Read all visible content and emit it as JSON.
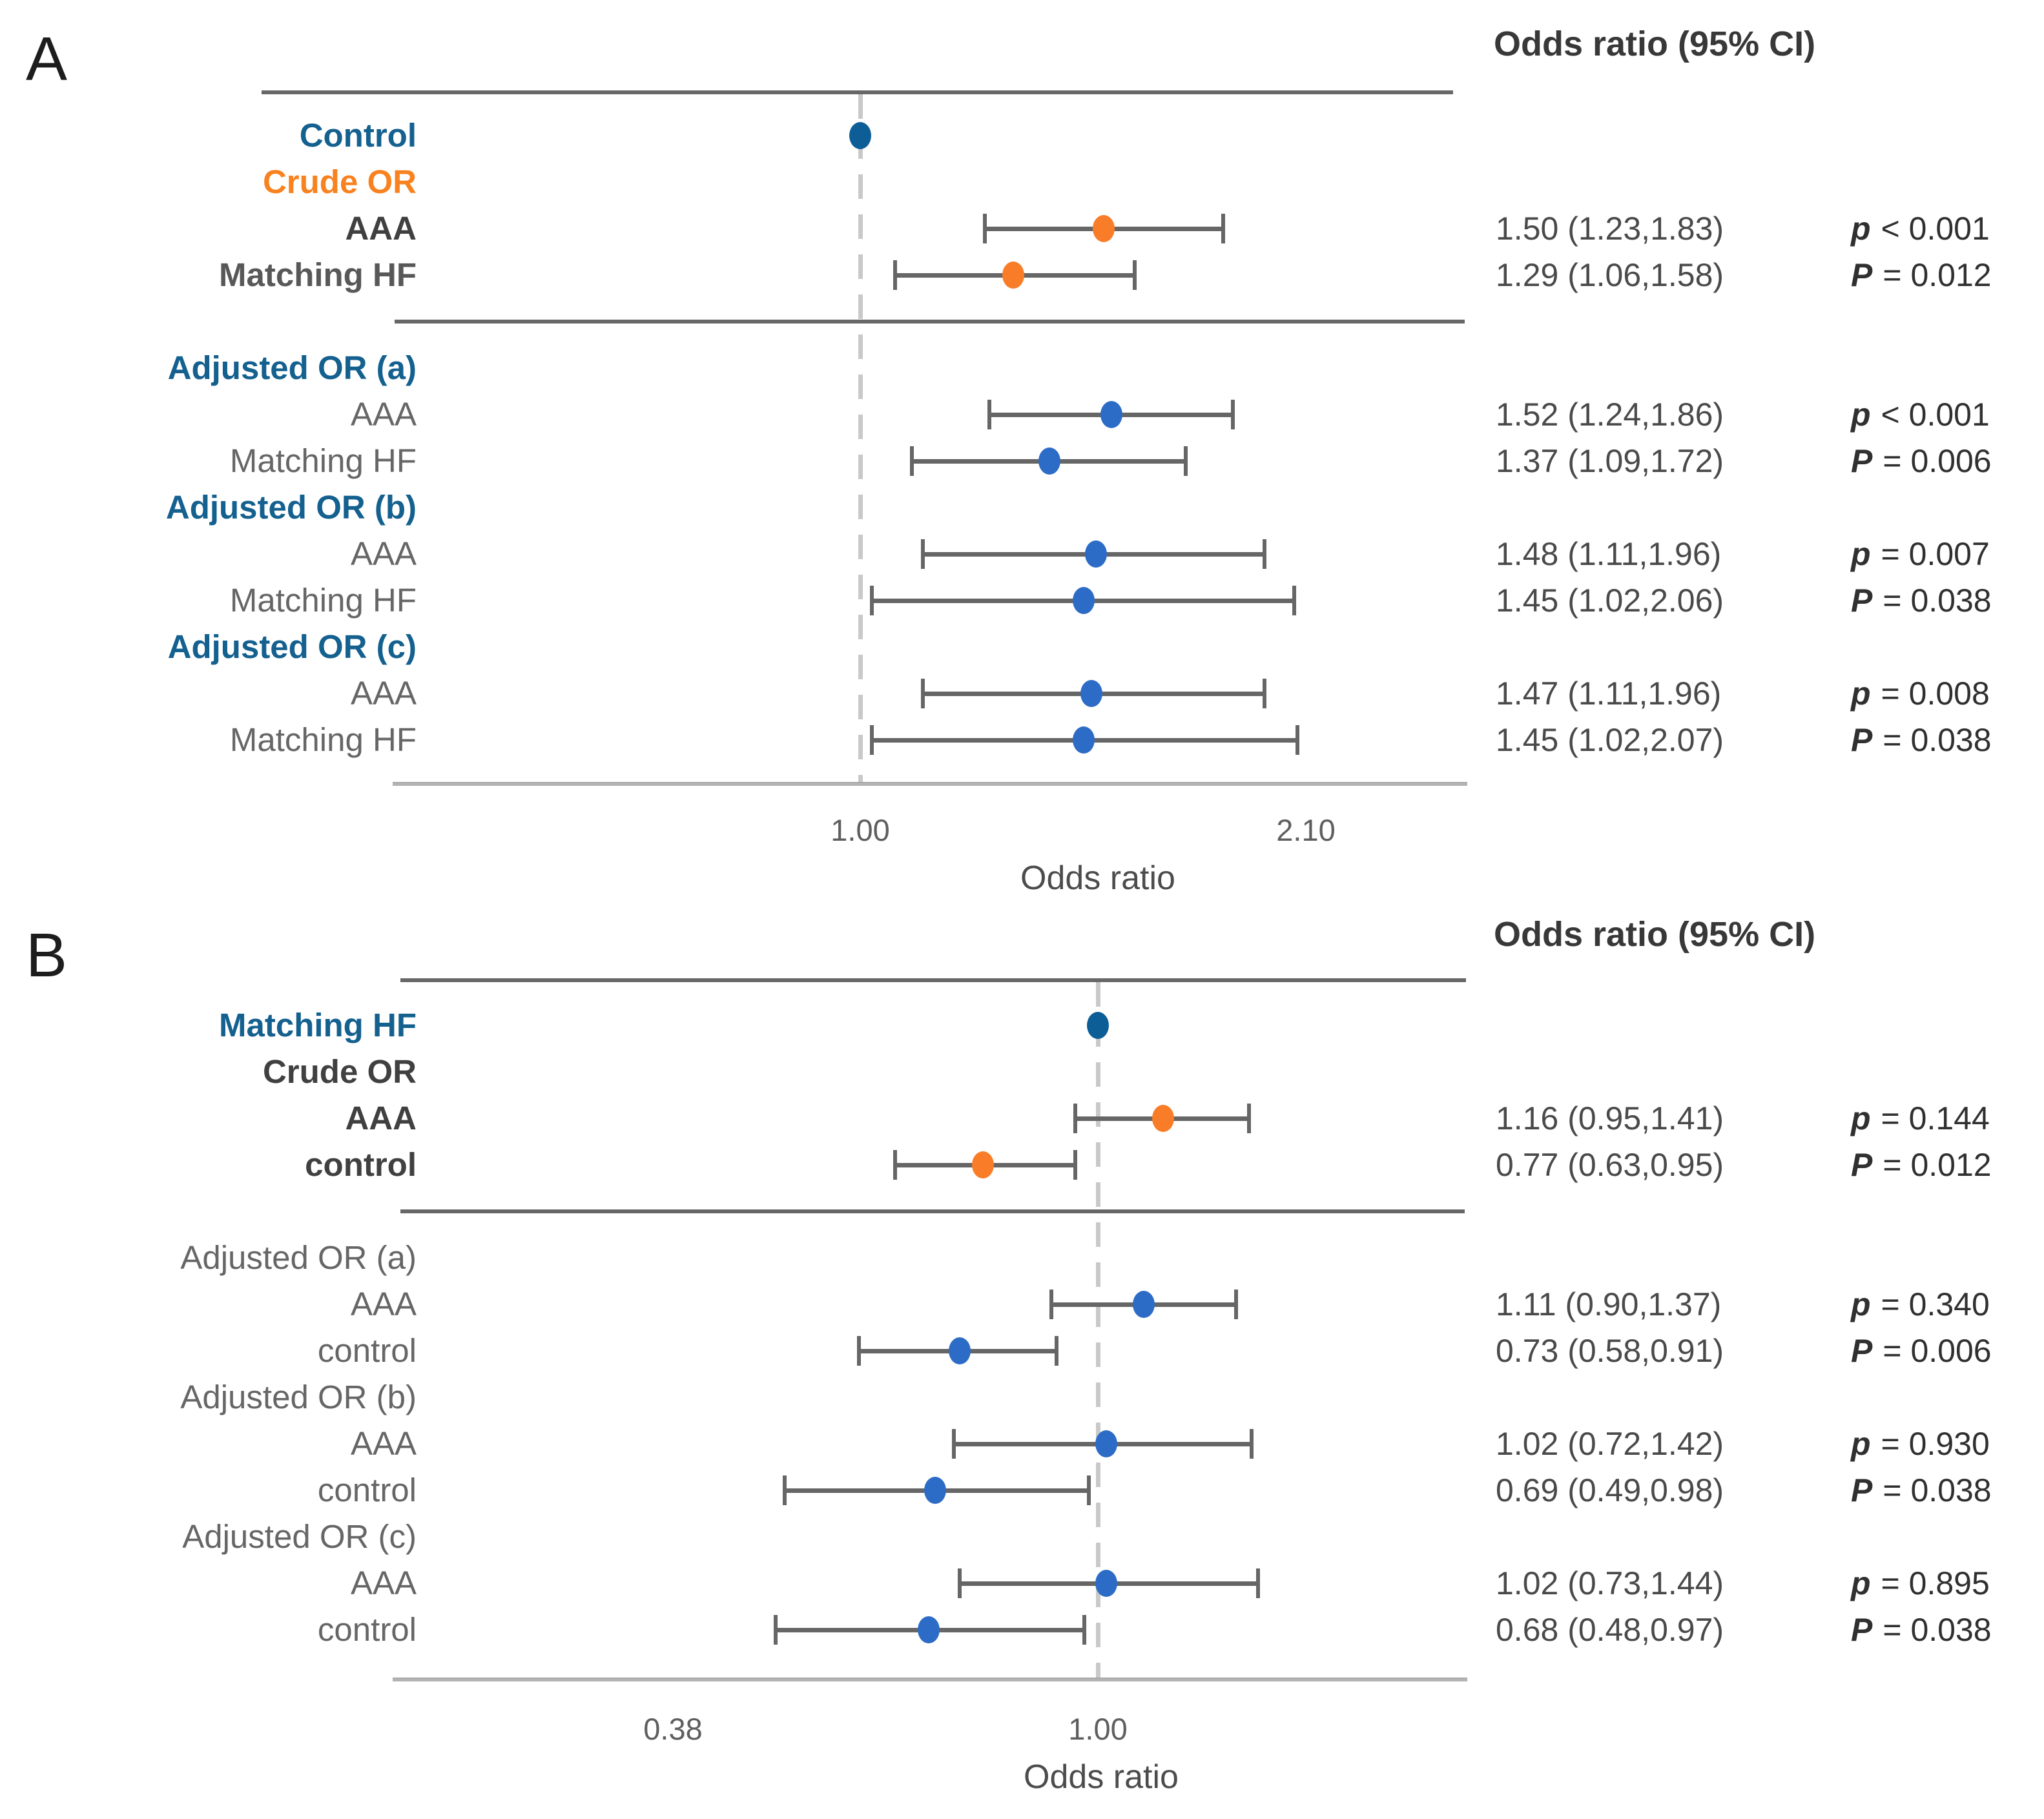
{
  "colors": {
    "background": "#ffffff",
    "label_blue": "#14608f",
    "label_orange": "#f8821f",
    "label_bold_dark": "#404040",
    "label_bold_gray": "#585858",
    "label_plain": "#666666",
    "dot_reference": "#0d5e96",
    "dot_crude": "#f97d28",
    "dot_adjusted": "#2d6cc6",
    "whisker": "#666666",
    "rule": "#676767",
    "axis_line": "#b3b3b3",
    "dashed_line": "#c9c9c9"
  },
  "chart_data": {
    "type": "scatter",
    "subtype": "forest-plot",
    "scale": "log",
    "grid": false,
    "panels": [
      {
        "letter": "A",
        "header": "Odds ratio (95% CI)",
        "axis": {
          "title": "Odds ratio",
          "reference_line": 1.0,
          "ticks": [
            {
              "label": "1.00",
              "value": 1.0
            },
            {
              "label": "2.10",
              "value": 2.1
            }
          ]
        },
        "rows": [
          {
            "type": "ref",
            "label": "Control",
            "label_style": "ref-blue",
            "series": "reference",
            "or": 1.0
          },
          {
            "type": "section",
            "label": "Crude OR",
            "label_style": "section-orange"
          },
          {
            "type": "est",
            "label": "AAA",
            "label_style": "bold-dark",
            "series": "crude",
            "or": 1.5,
            "lo": 1.23,
            "hi": 1.83,
            "value": "1.50 (1.23,1.83)",
            "p_sym": "p",
            "p_rest": "< 0.001"
          },
          {
            "type": "est",
            "label": "Matching HF",
            "label_style": "bold-gray",
            "series": "crude",
            "or": 1.29,
            "lo": 1.06,
            "hi": 1.58,
            "value": "1.29 (1.06,1.58)",
            "p_sym": "P",
            "p_rest": "= 0.012"
          },
          {
            "type": "divider"
          },
          {
            "type": "section",
            "label": "Adjusted OR (a)",
            "label_style": "section-blue"
          },
          {
            "type": "est",
            "label": "AAA",
            "label_style": "plain",
            "series": "adjusted",
            "or": 1.52,
            "lo": 1.24,
            "hi": 1.86,
            "value": "1.52 (1.24,1.86)",
            "p_sym": "p",
            "p_rest": "< 0.001"
          },
          {
            "type": "est",
            "label": "Matching HF",
            "label_style": "plain",
            "series": "adjusted",
            "or": 1.37,
            "lo": 1.09,
            "hi": 1.72,
            "value": "1.37 (1.09,1.72)",
            "p_sym": "P",
            "p_rest": "= 0.006"
          },
          {
            "type": "section",
            "label": "Adjusted OR (b)",
            "label_style": "section-blue"
          },
          {
            "type": "est",
            "label": "AAA",
            "label_style": "plain",
            "series": "adjusted",
            "or": 1.48,
            "lo": 1.11,
            "hi": 1.96,
            "value": "1.48 (1.11,1.96)",
            "p_sym": "p",
            "p_rest": "= 0.007"
          },
          {
            "type": "est",
            "label": "Matching HF",
            "label_style": "plain",
            "series": "adjusted",
            "or": 1.45,
            "lo": 1.02,
            "hi": 2.06,
            "value": "1.45 (1.02,2.06)",
            "p_sym": "P",
            "p_rest": "= 0.038"
          },
          {
            "type": "section",
            "label": "Adjusted OR (c)",
            "label_style": "section-blue"
          },
          {
            "type": "est",
            "label": "AAA",
            "label_style": "plain",
            "series": "adjusted",
            "or": 1.47,
            "lo": 1.11,
            "hi": 1.96,
            "value": "1.47 (1.11,1.96)",
            "p_sym": "p",
            "p_rest": "= 0.008"
          },
          {
            "type": "est",
            "label": "Matching HF",
            "label_style": "plain",
            "series": "adjusted",
            "or": 1.45,
            "lo": 1.02,
            "hi": 2.07,
            "value": "1.45 (1.02,2.07)",
            "p_sym": "P",
            "p_rest": "= 0.038"
          }
        ]
      },
      {
        "letter": "B",
        "header": "Odds ratio (95% CI)",
        "axis": {
          "title": "Odds ratio",
          "reference_line": 1.0,
          "ticks": [
            {
              "label": "0.38",
              "value": 0.38
            },
            {
              "label": "1.00",
              "value": 1.0
            }
          ]
        },
        "rows": [
          {
            "type": "ref",
            "label": "Matching HF",
            "label_style": "ref-blue",
            "series": "reference",
            "or": 1.0
          },
          {
            "type": "section",
            "label": "Crude OR",
            "label_style": "section-dark"
          },
          {
            "type": "est",
            "label": "AAA",
            "label_style": "bold-dark",
            "series": "crude",
            "or": 1.16,
            "lo": 0.95,
            "hi": 1.41,
            "value": "1.16 (0.95,1.41)",
            "p_sym": "p",
            "p_rest": "= 0.144"
          },
          {
            "type": "est",
            "label": "control",
            "label_style": "bold-dark",
            "series": "crude",
            "or": 0.77,
            "lo": 0.63,
            "hi": 0.95,
            "value": "0.77 (0.63,0.95)",
            "p_sym": "P",
            "p_rest": "= 0.012"
          },
          {
            "type": "divider"
          },
          {
            "type": "section",
            "label": "Adjusted OR (a)",
            "label_style": "section-plain"
          },
          {
            "type": "est",
            "label": "AAA",
            "label_style": "plain",
            "series": "adjusted",
            "or": 1.11,
            "lo": 0.9,
            "hi": 1.37,
            "value": "1.11 (0.90,1.37)",
            "p_sym": "p",
            "p_rest": "= 0.340"
          },
          {
            "type": "est",
            "label": "control",
            "label_style": "plain",
            "series": "adjusted",
            "or": 0.73,
            "lo": 0.58,
            "hi": 0.91,
            "value": "0.73 (0.58,0.91)",
            "p_sym": "P",
            "p_rest": "= 0.006"
          },
          {
            "type": "section",
            "label": "Adjusted OR (b)",
            "label_style": "section-plain"
          },
          {
            "type": "est",
            "label": "AAA",
            "label_style": "plain",
            "series": "adjusted",
            "or": 1.02,
            "lo": 0.72,
            "hi": 1.42,
            "value": "1.02 (0.72,1.42)",
            "p_sym": "p",
            "p_rest": "= 0.930"
          },
          {
            "type": "est",
            "label": "control",
            "label_style": "plain",
            "series": "adjusted",
            "or": 0.69,
            "lo": 0.49,
            "hi": 0.98,
            "value": "0.69 (0.49,0.98)",
            "p_sym": "P",
            "p_rest": "= 0.038"
          },
          {
            "type": "section",
            "label": "Adjusted OR (c)",
            "label_style": "section-plain"
          },
          {
            "type": "est",
            "label": "AAA",
            "label_style": "plain",
            "series": "adjusted",
            "or": 1.02,
            "lo": 0.73,
            "hi": 1.44,
            "value": "1.02 (0.73,1.44)",
            "p_sym": "p",
            "p_rest": "= 0.895"
          },
          {
            "type": "est",
            "label": "control",
            "label_style": "plain",
            "series": "adjusted",
            "or": 0.68,
            "lo": 0.48,
            "hi": 0.97,
            "value": "0.68 (0.48,0.97)",
            "p_sym": "P",
            "p_rest": "= 0.038"
          }
        ]
      }
    ]
  }
}
